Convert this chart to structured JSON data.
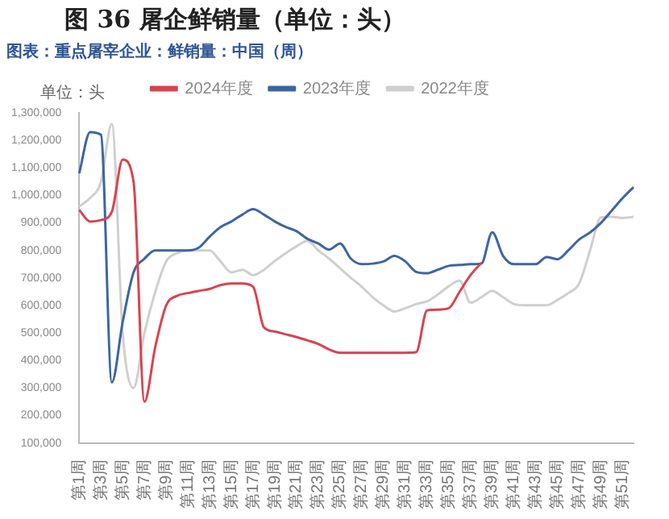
{
  "chart_data": {
    "type": "line",
    "title": "图 36 屠企鲜销量（单位：头）",
    "subtitle": "图表：重点屠宰企业：鲜销量：中国（周）",
    "ylabel": "单位：头",
    "categories": [
      "第1周",
      null,
      "第3周",
      null,
      "第5周",
      null,
      "第7周",
      null,
      "第9周",
      null,
      "第11周",
      null,
      "第13周",
      null,
      "第15周",
      null,
      "第17周",
      null,
      "第19周",
      null,
      "第21周",
      null,
      "第23周",
      null,
      "第25周",
      null,
      "第27周",
      null,
      "第29周",
      null,
      "第31周",
      null,
      "第33周",
      null,
      "第35周",
      null,
      "第37周",
      null,
      "第39周",
      null,
      "第41周",
      null,
      "第43周",
      null,
      "第45周",
      null,
      "第47周",
      null,
      "第49周",
      null,
      "第51周",
      null
    ],
    "series": [
      {
        "name": "2024年度",
        "color": "#d9434f",
        "values": [
          947000,
          905000,
          910000,
          940000,
          1130000,
          1050000,
          250000,
          450000,
          600000,
          635000,
          645000,
          653000,
          660000,
          674000,
          680000,
          680000,
          668000,
          520000,
          505000,
          495000,
          485000,
          473000,
          460000,
          440000,
          428000,
          428000,
          428000,
          428000,
          428000,
          428000,
          428000,
          430000,
          582000,
          585000,
          590000,
          650000,
          710000,
          755000,
          null,
          null,
          null,
          null,
          null,
          null,
          null,
          null,
          null,
          null,
          null,
          null,
          null,
          null
        ]
      },
      {
        "name": "2023年度",
        "color": "#3d65a3",
        "values": [
          1080000,
          1230000,
          1220000,
          320000,
          540000,
          720000,
          770000,
          800000,
          800000,
          800000,
          800000,
          810000,
          850000,
          885000,
          905000,
          930000,
          950000,
          930000,
          905000,
          885000,
          870000,
          842000,
          825000,
          803000,
          825000,
          770000,
          750000,
          752000,
          760000,
          780000,
          760000,
          722000,
          717000,
          730000,
          744000,
          747000,
          750000,
          752000,
          866000,
          780000,
          750000,
          750000,
          750000,
          776000,
          768000,
          800000,
          840000,
          865000,
          900000,
          945000,
          990000,
          1030000
        ]
      },
      {
        "name": "2022年度",
        "color": "#cfcfcf",
        "values": [
          960000,
          990000,
          1050000,
          1260000,
          500000,
          300000,
          500000,
          650000,
          760000,
          790000,
          800000,
          800000,
          800000,
          760000,
          720000,
          730000,
          710000,
          730000,
          762000,
          790000,
          815000,
          834000,
          800000,
          770000,
          735000,
          700000,
          668000,
          630000,
          600000,
          578000,
          590000,
          605000,
          615000,
          640000,
          670000,
          690000,
          610000,
          630000,
          653000,
          630000,
          605000,
          601000,
          601000,
          601000,
          620000,
          645000,
          680000,
          800000,
          920000,
          922000,
          918000,
          922000
        ]
      }
    ],
    "ylim": [
      100000,
      1300000
    ],
    "yticks": [
      {
        "value": 100000,
        "label": "100,000"
      },
      {
        "value": 200000,
        "label": "200,000"
      },
      {
        "value": 300000,
        "label": "300,000"
      },
      {
        "value": 400000,
        "label": "400,000"
      },
      {
        "value": 500000,
        "label": "500,000"
      },
      {
        "value": 600000,
        "label": "600,000"
      },
      {
        "value": 700000,
        "label": "700,000"
      },
      {
        "value": 800000,
        "label": "800,000"
      },
      {
        "value": 900000,
        "label": "900,000"
      },
      {
        "value": 1000000,
        "label": "1,000,000"
      },
      {
        "value": 1100000,
        "label": "1,100,000"
      },
      {
        "value": 1200000,
        "label": "1,200,000"
      },
      {
        "value": 1300000,
        "label": "1,300,000"
      }
    ],
    "legend": "top",
    "marker": "none",
    "line_style": "solid"
  }
}
